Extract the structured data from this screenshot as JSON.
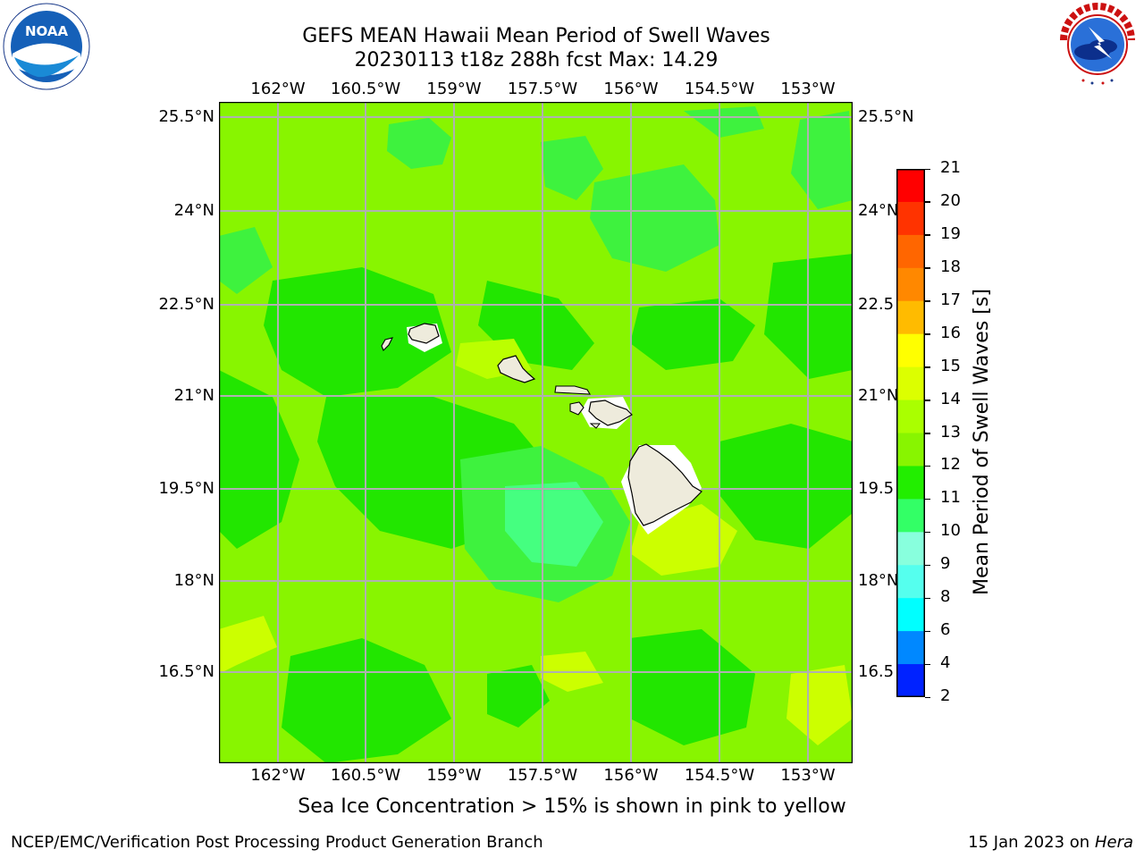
{
  "title": {
    "line1": "GEFS MEAN Hawaii Mean Period of Swell Waves",
    "line2": "20230113 t18z 288h fcst   Max: 14.29"
  },
  "logos": {
    "left": {
      "name": "noaa-logo",
      "text": "NOAA"
    },
    "right": {
      "name": "nws-logo",
      "text": "NATIONAL WEATHER SERVICE"
    }
  },
  "map": {
    "lon_labels": [
      "162°W",
      "160.5°W",
      "159°W",
      "157.5°W",
      "156°W",
      "154.5°W",
      "153°W"
    ],
    "lat_labels": [
      "25.5°N",
      "24°N",
      "22.5°N",
      "21°N",
      "19.5°N",
      "18°N",
      "16.5°N"
    ],
    "right_lat_labels": [
      "25.5°N",
      "24°N",
      "22.5",
      "21°N",
      "19.5",
      "18°N",
      "16.5"
    ],
    "lon_range": [
      -163,
      -152.5
    ],
    "lat_range": [
      15,
      25.8
    ],
    "colors": {
      "background": "#88f500",
      "grid": "#b0b0b0",
      "land": "#eeebdc",
      "coast": "#000000"
    }
  },
  "colorbar": {
    "label": "Mean Period of Swell Waves [s]",
    "ticks": [
      "21",
      "20",
      "19",
      "18",
      "17",
      "16",
      "15",
      "14",
      "13",
      "12",
      "11",
      "10",
      "9",
      "8",
      "6",
      "4",
      "2"
    ],
    "colors": [
      "#ff0000",
      "#ff3300",
      "#ff6600",
      "#ff8800",
      "#ffbb00",
      "#ffff00",
      "#dcff00",
      "#aaff00",
      "#88f500",
      "#22ee00",
      "#33ff66",
      "#88ffdd",
      "#55ffee",
      "#00ffff",
      "#0088ff",
      "#0022ff"
    ]
  },
  "footer": {
    "note": "Sea Ice Concentration > 15% is shown in pink to yellow",
    "left": "NCEP/EMC/Verification Post Processing Product Generation Branch",
    "date": "15 Jan 2023 on ",
    "machine": "Hera"
  }
}
